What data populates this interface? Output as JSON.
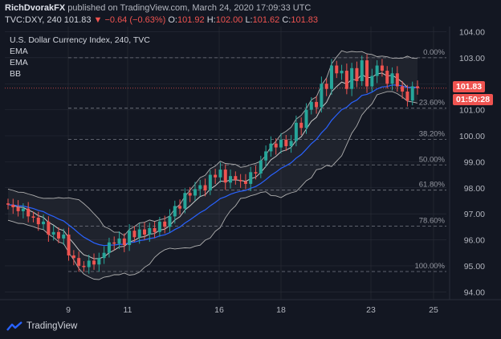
{
  "header": {
    "author": "RichDvorakFX",
    "published": "published on TradingView.com, March 24, 2020 17:09:33 UTC",
    "symbol": "TVC:DXY, 240",
    "last": "101.83",
    "change": "−0.64 (−0.63%)",
    "o_label": "O:",
    "o": "101.92",
    "h_label": "H:",
    "h": "102.00",
    "l_label": "L:",
    "l": "101.62",
    "c_label": "C:",
    "c": "101.83"
  },
  "legend": {
    "title": "U.S. Dollar Currency Index, 240, TVC",
    "line1": "EMA",
    "line2": "EMA",
    "line3": "BB"
  },
  "price_tags": {
    "last": "101.83",
    "countdown": "01:50:28"
  },
  "footer": {
    "brand": "TradingView"
  },
  "colors": {
    "background": "#131722",
    "up": "#26a69a",
    "down": "#ef5350",
    "ema_fast": "#c8c8c8",
    "ema_slow": "#2962ff",
    "bb": "#b0b0b0",
    "grid": "#2a2e39"
  },
  "chart_data": {
    "type": "candlestick",
    "x_ticks": [
      "9",
      "11",
      "16",
      "18",
      "23",
      "25"
    ],
    "y_ticks": [
      "94.00",
      "95.00",
      "96.00",
      "97.00",
      "98.00",
      "99.00",
      "100.00",
      "101.00",
      "102.00",
      "103.00",
      "104.00"
    ],
    "ylim": [
      93.7,
      104.2
    ],
    "fib_levels": [
      {
        "label": "0.00%",
        "value": 103.0
      },
      {
        "label": "23.60%",
        "value": 101.06
      },
      {
        "label": "38.20%",
        "value": 99.86
      },
      {
        "label": "50.00%",
        "value": 98.88
      },
      {
        "label": "61.80%",
        "value": 97.91
      },
      {
        "label": "78.60%",
        "value": 96.53
      },
      {
        "label": "100.00%",
        "value": 94.78
      }
    ],
    "close_series": [
      97.35,
      97.25,
      97.1,
      97.2,
      96.9,
      96.85,
      96.6,
      96.7,
      96.2,
      96.3,
      96.05,
      96.2,
      95.4,
      95.3,
      95.0,
      94.95,
      95.2,
      95.05,
      95.3,
      95.5,
      95.9,
      95.85,
      96.05,
      95.8,
      96.35,
      96.1,
      96.4,
      96.2,
      96.45,
      96.3,
      96.7,
      96.5,
      96.9,
      97.3,
      97.2,
      97.8,
      97.7,
      97.95,
      98.1,
      97.9,
      98.5,
      98.4,
      98.7,
      98.2,
      98.45,
      98.3,
      98.25,
      98.15,
      98.6,
      98.55,
      99.05,
      99.4,
      99.7,
      99.55,
      99.85,
      99.6,
      99.8,
      100.5,
      100.3,
      101.0,
      101.3,
      101.1,
      102.0,
      101.8,
      102.7,
      102.4,
      102.5,
      101.8,
      102.6,
      102.1,
      102.9,
      101.9,
      102.3,
      102.7,
      102.5,
      102.0,
      102.4,
      101.9,
      101.7,
      101.35,
      101.9,
      101.83
    ],
    "last_price": 101.83
  }
}
